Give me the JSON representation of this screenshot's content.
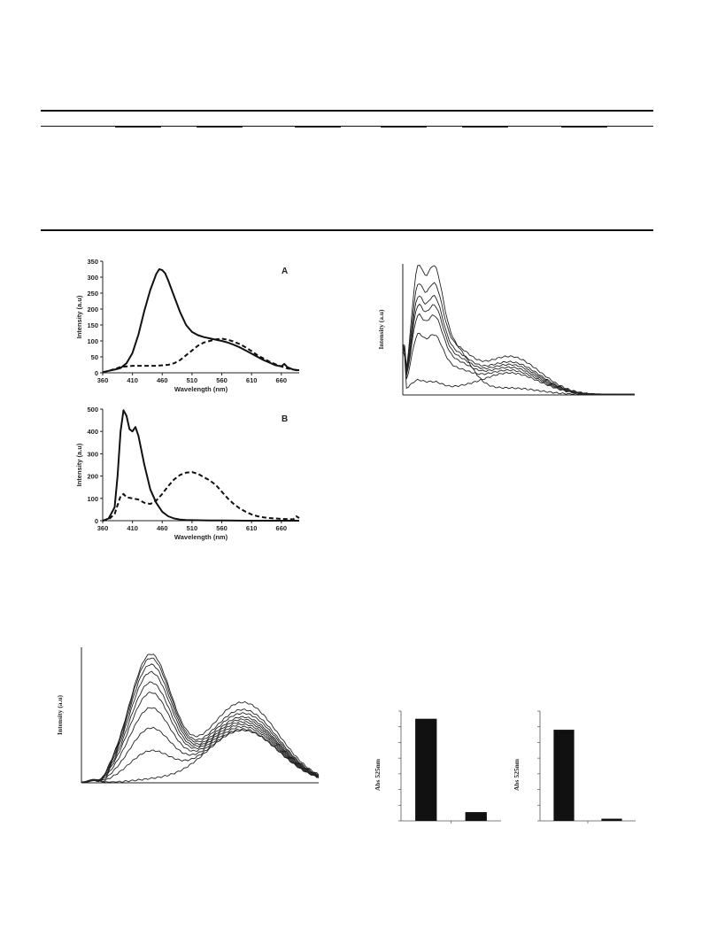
{
  "table": {
    "note": ""
  },
  "figA": {
    "chart_data": {
      "type": "line",
      "panel_label": "A",
      "xlabel": "Wavelength (nm)",
      "ylabel": "Intensity (a.u)",
      "xlim": [
        360,
        690
      ],
      "ylim": [
        0,
        350
      ],
      "xticks": [
        360,
        410,
        460,
        510,
        560,
        610,
        660
      ],
      "yticks": [
        0,
        50,
        100,
        150,
        200,
        250,
        300,
        350
      ],
      "series": [
        {
          "style": "solid",
          "x": [
            360,
            370,
            380,
            390,
            400,
            410,
            420,
            430,
            440,
            450,
            455,
            460,
            465,
            470,
            480,
            490,
            500,
            510,
            520,
            530,
            540,
            550,
            560,
            570,
            580,
            590,
            600,
            610,
            620,
            630,
            640,
            650,
            660,
            665,
            670,
            680,
            690
          ],
          "y": [
            2,
            6,
            10,
            15,
            30,
            62,
            120,
            195,
            260,
            310,
            325,
            322,
            312,
            290,
            240,
            190,
            150,
            128,
            118,
            112,
            108,
            104,
            100,
            95,
            88,
            80,
            70,
            60,
            50,
            40,
            32,
            24,
            20,
            28,
            18,
            10,
            8
          ]
        },
        {
          "style": "dashed",
          "x": [
            360,
            370,
            380,
            390,
            400,
            410,
            430,
            450,
            470,
            480,
            490,
            500,
            510,
            520,
            530,
            540,
            550,
            560,
            570,
            580,
            590,
            600,
            610,
            620,
            630,
            640,
            650,
            660,
            670,
            680,
            690
          ],
          "y": [
            2,
            6,
            12,
            18,
            20,
            22,
            22,
            22,
            25,
            30,
            40,
            55,
            70,
            85,
            95,
            100,
            105,
            107,
            104,
            98,
            90,
            80,
            68,
            55,
            45,
            35,
            27,
            20,
            14,
            10,
            6
          ]
        }
      ]
    }
  },
  "figB": {
    "chart_data": {
      "type": "line",
      "panel_label": "B",
      "xlabel": "Wavelength (nm)",
      "ylabel": "Intensity (a.u)",
      "xlim": [
        360,
        690
      ],
      "ylim": [
        0,
        500
      ],
      "xticks": [
        360,
        410,
        460,
        510,
        560,
        610,
        660
      ],
      "yticks": [
        0,
        100,
        200,
        300,
        400,
        500
      ],
      "series": [
        {
          "style": "solid",
          "x": [
            360,
            370,
            380,
            385,
            390,
            395,
            400,
            405,
            410,
            415,
            420,
            430,
            440,
            450,
            460,
            470,
            480,
            490,
            500,
            520,
            540,
            560,
            600,
            650,
            690
          ],
          "y": [
            0,
            10,
            60,
            200,
            400,
            495,
            470,
            410,
            400,
            420,
            380,
            250,
            140,
            80,
            40,
            20,
            10,
            5,
            3,
            2,
            1,
            1,
            0,
            0,
            0
          ]
        },
        {
          "style": "dashed",
          "x": [
            360,
            370,
            380,
            385,
            390,
            395,
            400,
            410,
            420,
            430,
            440,
            450,
            460,
            470,
            480,
            490,
            500,
            510,
            520,
            530,
            540,
            550,
            560,
            570,
            580,
            590,
            600,
            610,
            620,
            630,
            640,
            650,
            660,
            670,
            680,
            685,
            690
          ],
          "y": [
            0,
            5,
            30,
            70,
            110,
            120,
            105,
            100,
            95,
            80,
            75,
            90,
            120,
            155,
            185,
            205,
            215,
            218,
            210,
            195,
            180,
            160,
            130,
            100,
            75,
            55,
            40,
            28,
            20,
            15,
            12,
            10,
            8,
            7,
            6,
            20,
            12
          ]
        }
      ]
    }
  },
  "figC": {
    "chart_data": {
      "type": "line",
      "ylabel": "Intensity (a.u)",
      "note": "family of spectra, unlabeled axes",
      "xlim": [
        0,
        100
      ],
      "ylim": [
        0,
        100
      ],
      "series_peak1": [
        100,
        85,
        75,
        68,
        60,
        45,
        8
      ],
      "series_peak2": [
        5,
        28,
        24,
        22,
        20,
        18,
        16,
        14
      ]
    }
  },
  "figD": {
    "chart_data": {
      "type": "line",
      "ylabel": "Intensity (a.u)",
      "note": "family of spectra, unlabeled axes",
      "xlim": [
        0,
        100
      ],
      "ylim": [
        0,
        100
      ],
      "series_peak1": [
        100,
        97,
        92,
        86,
        78,
        70,
        58,
        42,
        24,
        2
      ],
      "series_peak2": [
        66,
        60,
        57,
        54,
        52,
        50,
        48,
        46,
        44,
        43
      ]
    }
  },
  "figE": {
    "chart_data": {
      "type": "bar",
      "ylabel": "Abs  525nm",
      "categories": [
        "",
        ""
      ],
      "values": [
        93,
        8
      ],
      "ylim": [
        0,
        100
      ]
    }
  },
  "figF": {
    "chart_data": {
      "type": "bar",
      "ylabel": "Abs  525nm",
      "categories": [
        "",
        ""
      ],
      "values": [
        83,
        2
      ],
      "ylim": [
        0,
        100
      ]
    }
  }
}
